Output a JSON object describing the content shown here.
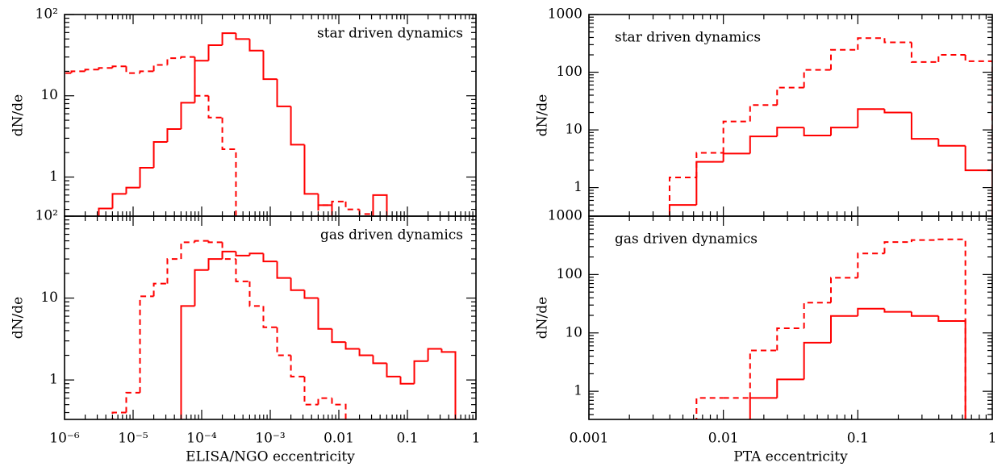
{
  "chart_data": [
    {
      "type": "histogram",
      "annotation": "star driven dynamics",
      "annotation_corner": "top-right",
      "ylabel": "dN/de",
      "log_x": true,
      "log_y": true,
      "show_xtick_labels": false,
      "xlim": [
        1e-06,
        1
      ],
      "xticks": [
        1e-06,
        1e-05,
        0.0001,
        0.001,
        0.01,
        0.1,
        1
      ],
      "ylim": [
        0.33,
        100
      ],
      "yticks": [
        1,
        10,
        {
          "value": 100,
          "label": "10²"
        }
      ],
      "bins": [
        7.94e-07,
        1.26e-06,
        2e-06,
        3.16e-06,
        5.01e-06,
        7.94e-06,
        1.26e-05,
        2e-05,
        3.16e-05,
        5.01e-05,
        7.94e-05,
        0.000126,
        0.0002,
        0.000316,
        0.000501,
        0.000794,
        0.00126,
        0.002,
        0.00316,
        0.00501,
        0.00794,
        0.0126,
        0.02,
        0.0316,
        0.0501,
        0.0794,
        0.126,
        0.2,
        0.316,
        0.501,
        0.794
      ],
      "series": [
        {
          "color": "#ff0000",
          "linestyle": "solid",
          "values": [
            null,
            null,
            null,
            0.41,
            0.62,
            0.74,
            1.3,
            2.7,
            3.9,
            8.2,
            27,
            42,
            59,
            50,
            36,
            16,
            7.4,
            2.5,
            0.62,
            0.45,
            null,
            null,
            null,
            0.6,
            null,
            null,
            null,
            null,
            null,
            null
          ]
        },
        {
          "color": "#ff0000",
          "linestyle": "dashed",
          "values": [
            19,
            20,
            21,
            22,
            23,
            19,
            20,
            24,
            29,
            30,
            10,
            5.4,
            2.2,
            null,
            null,
            null,
            null,
            null,
            null,
            0.45,
            0.5,
            0.4,
            0.35,
            null,
            null,
            null,
            null,
            null,
            null,
            null
          ]
        }
      ]
    },
    {
      "type": "histogram",
      "annotation": "star driven dynamics",
      "annotation_corner": "top-left",
      "ylabel": "dN/de",
      "log_x": true,
      "log_y": true,
      "show_xtick_labels": false,
      "xlim": [
        0.001,
        1
      ],
      "xticks": [
        0.001,
        0.01,
        0.1,
        1
      ],
      "ylim": [
        0.32,
        1000
      ],
      "yticks": [
        1,
        10,
        100,
        1000
      ],
      "bins": [
        0.00398,
        0.00631,
        0.01,
        0.0158,
        0.0251,
        0.0398,
        0.0631,
        0.1,
        0.158,
        0.251,
        0.398,
        0.631,
        1
      ],
      "series": [
        {
          "color": "#ff0000",
          "linestyle": "solid",
          "values": [
            0.5,
            2.8,
            3.9,
            7.7,
            11,
            8,
            11,
            23,
            20,
            7,
            5.3,
            2
          ]
        },
        {
          "color": "#ff0000",
          "linestyle": "dashed",
          "values": [
            1.5,
            4,
            14,
            27,
            54,
            110,
            245,
            390,
            330,
            150,
            200,
            155
          ]
        }
      ]
    },
    {
      "type": "histogram",
      "annotation": "gas driven dynamics",
      "annotation_corner": "top-right",
      "ylabel": "dN/de",
      "xlabel": "ELISA/NGO eccentricity",
      "log_x": true,
      "log_y": true,
      "show_xtick_labels": true,
      "xlim": [
        1e-06,
        1
      ],
      "xticks": [
        {
          "value": 1e-06,
          "label": "10⁻⁶"
        },
        {
          "value": 1e-05,
          "label": "10⁻⁵"
        },
        {
          "value": 0.0001,
          "label": "10⁻⁴"
        },
        {
          "value": 0.001,
          "label": "10⁻³"
        },
        0.01,
        0.1,
        1
      ],
      "ylim": [
        0.33,
        100
      ],
      "yticks": [
        1,
        10,
        {
          "value": 100,
          "label": "10²"
        }
      ],
      "bins": [
        7.94e-07,
        1.26e-06,
        2e-06,
        3.16e-06,
        5.01e-06,
        7.94e-06,
        1.26e-05,
        2e-05,
        3.16e-05,
        5.01e-05,
        7.94e-05,
        0.000126,
        0.0002,
        0.000316,
        0.000501,
        0.000794,
        0.00126,
        0.002,
        0.00316,
        0.00501,
        0.00794,
        0.0126,
        0.02,
        0.0316,
        0.0501,
        0.0794,
        0.126,
        0.2,
        0.316,
        0.501,
        0.794
      ],
      "series": [
        {
          "color": "#ff0000",
          "linestyle": "solid",
          "values": [
            null,
            null,
            null,
            null,
            null,
            null,
            null,
            null,
            null,
            8,
            22,
            30,
            37,
            33,
            35,
            28,
            17.6,
            12.5,
            10,
            4.2,
            2.9,
            2.4,
            2.0,
            1.6,
            1.1,
            0.9,
            1.7,
            2.4,
            2.2,
            null
          ]
        },
        {
          "color": "#ff0000",
          "linestyle": "dashed",
          "values": [
            null,
            null,
            null,
            null,
            0.4,
            0.7,
            10.5,
            15,
            30,
            48,
            50,
            48,
            30,
            16,
            8,
            4.4,
            2,
            1.1,
            0.5,
            0.6,
            0.5,
            null,
            null,
            null,
            null,
            null,
            null,
            null,
            null,
            null
          ]
        }
      ]
    },
    {
      "type": "histogram",
      "annotation": "gas driven dynamics",
      "annotation_corner": "top-left",
      "ylabel": "dN/de",
      "xlabel": "PTA eccentricity",
      "log_x": true,
      "log_y": true,
      "show_xtick_labels": true,
      "xlim": [
        0.001,
        1
      ],
      "xticks": [
        0.001,
        0.01,
        0.1,
        1
      ],
      "ylim": [
        0.33,
        1000
      ],
      "yticks": [
        1,
        10,
        100,
        1000
      ],
      "bins": [
        0.00398,
        0.00631,
        0.01,
        0.0158,
        0.0251,
        0.0398,
        0.0631,
        0.1,
        0.158,
        0.251,
        0.398,
        0.631,
        1
      ],
      "series": [
        {
          "color": "#ff0000",
          "linestyle": "solid",
          "values": [
            null,
            null,
            null,
            0.77,
            1.6,
            6.8,
            19.5,
            26,
            23,
            19.5,
            16,
            null
          ]
        },
        {
          "color": "#ff0000",
          "linestyle": "dashed",
          "values": [
            null,
            0.77,
            0.77,
            5,
            12,
            33,
            88,
            230,
            360,
            390,
            400,
            null
          ]
        }
      ]
    }
  ]
}
